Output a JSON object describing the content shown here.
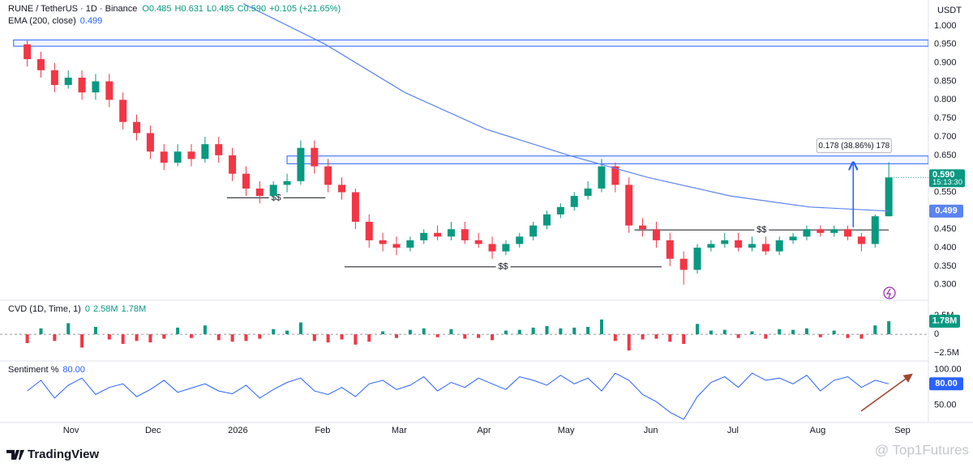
{
  "chart_data": [
    {
      "type": "candlestick",
      "title": "RUNE / TetherUS · 1D · Binance",
      "ohlc_labels": [
        "O0.485",
        "H0.631",
        "L0.485",
        "C0.590"
      ],
      "change_label": "+0.105 (+21.65%)",
      "unit": "USDT",
      "x": [
        4,
        9,
        14,
        19,
        24,
        29,
        34,
        39,
        44,
        49,
        54,
        59,
        64,
        69,
        74,
        79,
        84,
        89,
        94,
        99,
        104,
        109,
        114,
        119,
        124,
        129,
        134,
        139,
        144,
        149,
        154,
        159,
        164,
        169,
        174,
        179,
        184,
        189,
        194,
        199,
        204,
        209,
        214,
        219,
        224,
        229,
        234,
        239,
        244,
        249,
        254,
        259,
        264,
        269,
        274,
        279,
        284,
        289,
        294,
        299,
        304,
        309,
        314,
        319
      ],
      "open": [
        0.95,
        0.91,
        0.88,
        0.84,
        0.86,
        0.82,
        0.85,
        0.8,
        0.74,
        0.71,
        0.66,
        0.63,
        0.66,
        0.64,
        0.68,
        0.65,
        0.6,
        0.56,
        0.54,
        0.57,
        0.58,
        0.67,
        0.62,
        0.57,
        0.55,
        0.47,
        0.42,
        0.41,
        0.4,
        0.42,
        0.44,
        0.43,
        0.45,
        0.42,
        0.41,
        0.39,
        0.41,
        0.43,
        0.46,
        0.49,
        0.51,
        0.54,
        0.56,
        0.62,
        0.57,
        0.46,
        0.45,
        0.42,
        0.37,
        0.34,
        0.4,
        0.41,
        0.42,
        0.4,
        0.41,
        0.39,
        0.42,
        0.43,
        0.45,
        0.44,
        0.45,
        0.43,
        0.41,
        0.485
      ],
      "high": [
        0.96,
        0.93,
        0.9,
        0.88,
        0.88,
        0.87,
        0.87,
        0.82,
        0.76,
        0.73,
        0.68,
        0.68,
        0.68,
        0.7,
        0.7,
        0.67,
        0.62,
        0.58,
        0.58,
        0.6,
        0.69,
        0.69,
        0.64,
        0.59,
        0.56,
        0.49,
        0.44,
        0.43,
        0.43,
        0.45,
        0.46,
        0.47,
        0.47,
        0.44,
        0.43,
        0.42,
        0.44,
        0.47,
        0.5,
        0.52,
        0.55,
        0.58,
        0.64,
        0.63,
        0.59,
        0.48,
        0.47,
        0.44,
        0.39,
        0.41,
        0.42,
        0.44,
        0.44,
        0.43,
        0.43,
        0.43,
        0.44,
        0.46,
        0.46,
        0.46,
        0.46,
        0.44,
        0.49,
        0.631
      ],
      "low": [
        0.89,
        0.86,
        0.82,
        0.83,
        0.8,
        0.8,
        0.78,
        0.72,
        0.69,
        0.64,
        0.61,
        0.62,
        0.62,
        0.63,
        0.63,
        0.58,
        0.54,
        0.52,
        0.53,
        0.55,
        0.57,
        0.6,
        0.55,
        0.53,
        0.45,
        0.4,
        0.39,
        0.38,
        0.39,
        0.41,
        0.42,
        0.42,
        0.41,
        0.4,
        0.37,
        0.38,
        0.4,
        0.42,
        0.45,
        0.48,
        0.5,
        0.53,
        0.55,
        0.55,
        0.44,
        0.43,
        0.4,
        0.35,
        0.3,
        0.33,
        0.39,
        0.4,
        0.39,
        0.39,
        0.38,
        0.38,
        0.41,
        0.42,
        0.43,
        0.43,
        0.42,
        0.39,
        0.4,
        0.485
      ],
      "close": [
        0.91,
        0.88,
        0.84,
        0.86,
        0.82,
        0.85,
        0.8,
        0.74,
        0.71,
        0.66,
        0.63,
        0.66,
        0.64,
        0.68,
        0.65,
        0.6,
        0.56,
        0.54,
        0.57,
        0.58,
        0.67,
        0.62,
        0.57,
        0.55,
        0.47,
        0.42,
        0.41,
        0.4,
        0.42,
        0.44,
        0.43,
        0.45,
        0.42,
        0.41,
        0.39,
        0.41,
        0.43,
        0.46,
        0.49,
        0.51,
        0.54,
        0.56,
        0.62,
        0.57,
        0.46,
        0.45,
        0.42,
        0.37,
        0.34,
        0.4,
        0.41,
        0.42,
        0.4,
        0.41,
        0.39,
        0.42,
        0.43,
        0.45,
        0.44,
        0.45,
        0.43,
        0.41,
        0.485,
        0.59
      ],
      "colors": {
        "up": "#089981",
        "down": "#f23645"
      },
      "last_price_label": "0.590",
      "countdown": "15:13:30",
      "xlim": [
        -3,
        332
      ],
      "xticks": [
        {
          "value": 20,
          "label": "Nov"
        },
        {
          "value": 50,
          "label": "Dec"
        },
        {
          "value": 81,
          "label": "2026"
        },
        {
          "value": 112,
          "label": "Feb"
        },
        {
          "value": 140,
          "label": "Mar"
        },
        {
          "value": 171,
          "label": "Apr"
        },
        {
          "value": 201,
          "label": "May"
        },
        {
          "value": 232,
          "label": "Jun"
        },
        {
          "value": 262,
          "label": "Jul"
        },
        {
          "value": 293,
          "label": "Aug"
        },
        {
          "value": 324,
          "label": "Sep"
        }
      ],
      "ylim": [
        0.26,
        1.07
      ],
      "yticks": [
        {
          "value": 0.3,
          "label": "0.300"
        },
        {
          "value": 0.35,
          "label": "0.350"
        },
        {
          "value": 0.4,
          "label": "0.400"
        },
        {
          "value": 0.45,
          "label": "0.450"
        },
        {
          "value": 0.55,
          "label": "0.550"
        },
        {
          "value": 0.6,
          "label": "0.600"
        },
        {
          "value": 0.65,
          "label": "0.650"
        },
        {
          "value": 0.7,
          "label": "0.700"
        },
        {
          "value": 0.75,
          "label": "0.750"
        },
        {
          "value": 0.8,
          "label": "0.800"
        },
        {
          "value": 0.85,
          "label": "0.850"
        },
        {
          "value": 0.9,
          "label": "0.900"
        },
        {
          "value": 0.95,
          "label": "0.950"
        },
        {
          "value": 1.0,
          "label": "1.000"
        }
      ],
      "overlays": [
        {
          "name": "EMA (200, close)",
          "value_label": "0.499",
          "color": "#5b84f0",
          "x": [
            83,
            113,
            142,
            172,
            202,
            231,
            261,
            290,
            319
          ],
          "values": [
            1.06,
            0.95,
            0.82,
            0.72,
            0.65,
            0.59,
            0.54,
            0.51,
            0.499
          ]
        }
      ],
      "zones": [
        {
          "low": 0.945,
          "high": 0.962,
          "from": -1
        },
        {
          "low": 0.627,
          "high": 0.648,
          "from": 99
        }
      ],
      "levels": [
        {
          "value": 0.535,
          "from": 77,
          "to": 113,
          "label": "$$"
        },
        {
          "value": 0.348,
          "from": 120,
          "to": 236,
          "label": "$$"
        },
        {
          "value": 0.448,
          "from": 226,
          "to": 319,
          "label": "$$"
        }
      ],
      "measure": {
        "from": 0.455,
        "to": 0.633,
        "at": 306,
        "label": "0.178 (38.86%) 178"
      }
    },
    {
      "type": "bar",
      "title": "CVD (1D, Time, 1)",
      "header_values": [
        "0",
        "2.58M",
        "1.78M"
      ],
      "values": [
        -1.2,
        0.8,
        -0.9,
        1.5,
        -1.8,
        1.0,
        -0.7,
        -1.3,
        -0.9,
        -1.1,
        -0.6,
        0.9,
        -0.5,
        1.2,
        -0.8,
        -1.0,
        -0.9,
        -0.6,
        0.7,
        0.5,
        1.6,
        -0.9,
        -1.1,
        -0.7,
        -1.4,
        -1.0,
        0.4,
        -0.5,
        0.6,
        0.8,
        -0.4,
        0.7,
        -0.6,
        -0.5,
        -0.8,
        0.5,
        0.6,
        0.9,
        1.1,
        0.8,
        0.9,
        1.0,
        2.0,
        -0.9,
        -2.2,
        -0.7,
        -0.6,
        -1.0,
        -1.3,
        1.4,
        0.5,
        0.6,
        -0.5,
        0.4,
        -0.6,
        0.7,
        0.6,
        0.8,
        -0.4,
        0.5,
        -0.5,
        -0.6,
        1.2,
        1.78
      ],
      "colors": {
        "up": "#089981",
        "down": "#f23645"
      },
      "ylim": [
        -3.5,
        4.5
      ],
      "yticks": [
        {
          "value": 2.5,
          "label": "2.5M"
        },
        0,
        {
          "value": -2.5,
          "label": "−2.5M"
        }
      ]
    },
    {
      "type": "line",
      "title": "Sentiment %",
      "value_label": "80.00",
      "color": "#2962ff",
      "values": [
        70,
        85,
        60,
        78,
        88,
        65,
        75,
        80,
        62,
        72,
        85,
        68,
        74,
        80,
        70,
        66,
        78,
        60,
        72,
        82,
        88,
        70,
        65,
        75,
        62,
        80,
        85,
        72,
        78,
        90,
        70,
        82,
        75,
        88,
        80,
        72,
        90,
        85,
        78,
        92,
        80,
        88,
        70,
        95,
        85,
        65,
        55,
        40,
        30,
        62,
        82,
        90,
        75,
        95,
        85,
        88,
        80,
        92,
        70,
        85,
        90,
        75,
        85,
        80
      ],
      "ylim": [
        28,
        111
      ],
      "yticks": [
        {
          "value": 100,
          "label": "100.00"
        },
        {
          "value": 50,
          "label": "50.00"
        }
      ]
    }
  ],
  "footer": {
    "brand": "TradingView",
    "watermark": "@ Top1Futures"
  }
}
